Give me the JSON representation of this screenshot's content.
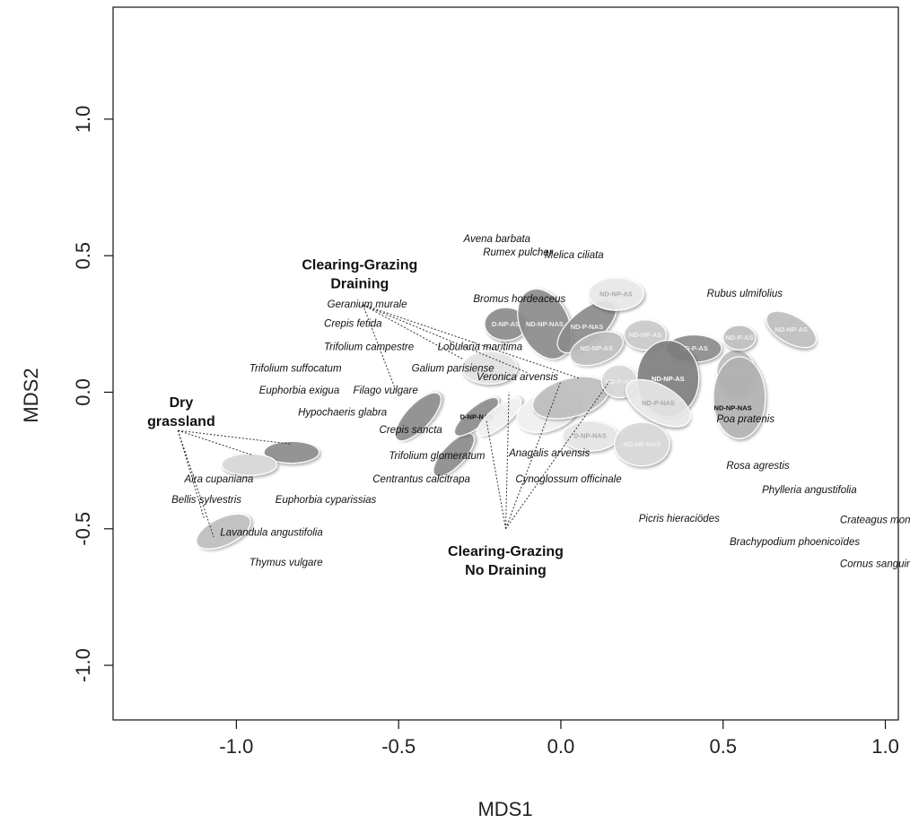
{
  "chart_data": {
    "type": "scatter",
    "xlabel": "MDS1",
    "ylabel": "MDS2",
    "xlim": [
      -1.38,
      1.04
    ],
    "ylim": [
      -1.2,
      1.41
    ],
    "xticks": [
      -1.0,
      -0.5,
      0.0,
      0.5,
      1.0
    ],
    "yticks": [
      -1.0,
      -0.5,
      0.0,
      0.5,
      1.0
    ],
    "xtick_labels": [
      "-1.0",
      "-0.5",
      "0.0",
      "0.5",
      "1.0"
    ],
    "ytick_labels": [
      "-1.0",
      "-0.5",
      "0.0",
      "0.5",
      "1.0"
    ],
    "grid": false,
    "species": [
      {
        "label": "Avena barbata",
        "x": -0.3,
        "y": 0.55
      },
      {
        "label": "Melica ciliata",
        "x": -0.05,
        "y": 0.49
      },
      {
        "label": "Rumex pulcher",
        "x": -0.24,
        "y": 0.5
      },
      {
        "label": "Bromus hordeaceus",
        "x": -0.27,
        "y": 0.33
      },
      {
        "label": "Rubus ulmifolius",
        "x": 0.45,
        "y": 0.35
      },
      {
        "label": "Geranium murale",
        "x": -0.72,
        "y": 0.31
      },
      {
        "label": "Crepis fetida",
        "x": -0.73,
        "y": 0.24
      },
      {
        "label": "Trifolium campestre",
        "x": -0.73,
        "y": 0.155
      },
      {
        "label": "Lobularia maritima",
        "x": -0.38,
        "y": 0.155
      },
      {
        "label": "Trifolium suffocatum",
        "x": -0.96,
        "y": 0.075
      },
      {
        "label": "Galium parisiense",
        "x": -0.46,
        "y": 0.075
      },
      {
        "label": "Veronica arvensis",
        "x": -0.26,
        "y": 0.045
      },
      {
        "label": "Euphorbia exigua",
        "x": -0.93,
        "y": -0.005
      },
      {
        "label": "Filago vulgare",
        "x": -0.64,
        "y": -0.005
      },
      {
        "label": "Hypochaeris glabra",
        "x": -0.81,
        "y": -0.085
      },
      {
        "label": "Crepis sancta",
        "x": -0.56,
        "y": -0.15
      },
      {
        "label": "Trifolium glomeratum",
        "x": -0.53,
        "y": -0.245
      },
      {
        "label": "Anagalis arvensis",
        "x": -0.16,
        "y": -0.235
      },
      {
        "label": "Aira cupaniana",
        "x": -1.16,
        "y": -0.33
      },
      {
        "label": "Centrantus calcitrapa",
        "x": -0.58,
        "y": -0.33
      },
      {
        "label": "Cynoglossum officinale",
        "x": -0.14,
        "y": -0.33
      },
      {
        "label": "Bellis sylvestris",
        "x": -1.2,
        "y": -0.405
      },
      {
        "label": "Euphorbia cyparissias",
        "x": -0.88,
        "y": -0.405
      },
      {
        "label": "Lavandula angustifolia",
        "x": -1.05,
        "y": -0.525
      },
      {
        "label": "Thymus vulgare",
        "x": -0.96,
        "y": -0.635
      },
      {
        "label": "Picris hieraciödes",
        "x": 0.24,
        "y": -0.475
      },
      {
        "label": "Poa pratenis",
        "x": 0.48,
        "y": -0.11
      },
      {
        "label": "Rosa agrestis",
        "x": 0.51,
        "y": -0.28
      },
      {
        "label": "Phylleria angustifolia",
        "x": 0.62,
        "y": -0.37
      },
      {
        "label": "Crateagus monogyna",
        "x": 0.86,
        "y": -0.48
      },
      {
        "label": "Brachypodium phoenicoïdes",
        "x": 0.52,
        "y": -0.56
      },
      {
        "label": "Cornus sanguinea",
        "x": 0.86,
        "y": -0.64
      }
    ],
    "groups": [
      {
        "label_lines": [
          "Clearing-Grazing",
          "Draining"
        ],
        "x": -0.62,
        "y": 0.45,
        "anchor": [
          -0.61,
          0.32
        ],
        "spokes": [
          [
            -0.51,
            0.01
          ],
          [
            -0.3,
            0.12
          ],
          [
            -0.1,
            0.07
          ],
          [
            0.06,
            0.05
          ]
        ]
      },
      {
        "label_lines": [
          "Dry",
          "grassland"
        ],
        "x": -1.17,
        "y": -0.055,
        "anchor": [
          -1.18,
          -0.14
        ],
        "spokes": [
          [
            -0.83,
            -0.19
          ],
          [
            -0.95,
            -0.23
          ],
          [
            -1.1,
            -0.46
          ],
          [
            -1.07,
            -0.53
          ]
        ]
      },
      {
        "label_lines": [
          "Clearing-Grazing",
          "No Draining"
        ],
        "x": -0.17,
        "y": -0.6,
        "anchor": [
          -0.17,
          -0.5
        ],
        "spokes": [
          [
            -0.23,
            -0.1
          ],
          [
            0.0,
            0.04
          ],
          [
            0.15,
            0.04
          ],
          [
            -0.16,
            0.0
          ]
        ]
      }
    ],
    "ellipses": [
      {
        "label": "",
        "x": -0.83,
        "y": -0.22,
        "rx": 0.085,
        "ry": 0.04,
        "angle": 0,
        "fill": "#8c8c8c"
      },
      {
        "label": "",
        "x": -0.96,
        "y": -0.265,
        "rx": 0.085,
        "ry": 0.04,
        "angle": 0,
        "fill": "#d9d9d9"
      },
      {
        "label": "",
        "x": -1.04,
        "y": -0.51,
        "rx": 0.09,
        "ry": 0.05,
        "angle": -25,
        "fill": "#bfbfbf"
      },
      {
        "label": "",
        "x": -0.44,
        "y": -0.09,
        "rx": 0.095,
        "ry": 0.045,
        "angle": -47,
        "fill": "#8c8c8c"
      },
      {
        "label": "",
        "x": -0.33,
        "y": -0.23,
        "rx": 0.085,
        "ry": 0.04,
        "angle": -47,
        "fill": "#8c8c8c"
      },
      {
        "label": "D-NP-NAS",
        "x": -0.26,
        "y": -0.09,
        "rx": 0.085,
        "ry": 0.035,
        "angle": -40,
        "fill": "#8c8c8c",
        "text": "#111111"
      },
      {
        "label": "",
        "x": -0.19,
        "y": -0.09,
        "rx": 0.085,
        "ry": 0.035,
        "angle": -40,
        "fill": "#f2f2f2"
      },
      {
        "label": "D-NP-AS",
        "x": -0.17,
        "y": 0.25,
        "rx": 0.065,
        "ry": 0.06,
        "angle": 0,
        "fill": "#8c8c8c",
        "text": "#eeeeee"
      },
      {
        "label": "",
        "x": -0.22,
        "y": 0.09,
        "rx": 0.085,
        "ry": 0.06,
        "angle": 0,
        "fill": "#e5e5e5"
      },
      {
        "label": "D-NP-AS",
        "x": -0.04,
        "y": -0.07,
        "rx": 0.1,
        "ry": 0.07,
        "angle": -20,
        "fill": "#f2f2f2",
        "text": "#bbbbbb"
      },
      {
        "label": "ND-NP-NAS",
        "x": -0.05,
        "y": 0.25,
        "rx": 0.075,
        "ry": 0.135,
        "angle": -25,
        "fill": "#8c8c8c",
        "text": "#eeeeee"
      },
      {
        "label": "ND-P-NAS",
        "x": 0.08,
        "y": 0.24,
        "rx": 0.11,
        "ry": 0.06,
        "angle": -40,
        "fill": "#8c8c8c",
        "text": "#eeeeee"
      },
      {
        "label": "ND-NP-AS",
        "x": 0.17,
        "y": 0.36,
        "rx": 0.085,
        "ry": 0.06,
        "angle": 0,
        "fill": "#ececec",
        "text": "#aaaaaa"
      },
      {
        "label": "ND-NP-AS",
        "x": 0.11,
        "y": 0.16,
        "rx": 0.085,
        "ry": 0.055,
        "angle": -20,
        "fill": "#bfbfbf",
        "text": "#eeeeee"
      },
      {
        "label": "ND-NP-AS",
        "x": 0.26,
        "y": 0.21,
        "rx": 0.065,
        "ry": 0.055,
        "angle": 0,
        "fill": "#cccccc",
        "text": "#eeeeee"
      },
      {
        "label": "ND-P-AS",
        "x": 0.41,
        "y": 0.16,
        "rx": 0.085,
        "ry": 0.05,
        "angle": 0,
        "fill": "#8c8c8c",
        "text": "#eeeeee"
      },
      {
        "label": "",
        "x": 0.03,
        "y": -0.02,
        "rx": 0.12,
        "ry": 0.07,
        "angle": -15,
        "fill": "#bfbfbf"
      },
      {
        "label": "ND-P-AS",
        "x": 0.18,
        "y": 0.04,
        "rx": 0.055,
        "ry": 0.06,
        "angle": 0,
        "fill": "#d9d9d9",
        "text": "#eeeeee"
      },
      {
        "label": "ND-NP-AS",
        "x": 0.33,
        "y": 0.05,
        "rx": 0.095,
        "ry": 0.14,
        "angle": 0,
        "fill": "#7f7f7f",
        "text": "#ffffff"
      },
      {
        "label": "ND-P-NAS",
        "x": 0.3,
        "y": -0.04,
        "rx": 0.11,
        "ry": 0.065,
        "angle": 30,
        "fill": "#ececec",
        "text": "#aaaaaa"
      },
      {
        "label": "D-NP-NAS",
        "x": 0.09,
        "y": -0.16,
        "rx": 0.085,
        "ry": 0.055,
        "angle": 0,
        "fill": "#e8e8e8",
        "text": "#aaaaaa"
      },
      {
        "label": "ND-NP-NAS",
        "x": 0.25,
        "y": -0.19,
        "rx": 0.085,
        "ry": 0.08,
        "angle": 0,
        "fill": "#d9d9d9",
        "text": "#eeeeee"
      },
      {
        "label": "ND-P-NAS",
        "x": 0.54,
        "y": 0.07,
        "rx": 0.06,
        "ry": 0.085,
        "angle": 0,
        "fill": "#bfbfbf",
        "text": "#eeeeee"
      },
      {
        "label": "",
        "x": 0.55,
        "y": -0.02,
        "rx": 0.08,
        "ry": 0.15,
        "angle": 0,
        "fill": "#b3b3b3"
      },
      {
        "label": "ND-P-AS",
        "x": 0.55,
        "y": 0.2,
        "rx": 0.05,
        "ry": 0.045,
        "angle": 0,
        "fill": "#bfbfbf",
        "text": "#eeeeee"
      },
      {
        "label": "ND-NP-AS",
        "x": 0.71,
        "y": 0.23,
        "rx": 0.085,
        "ry": 0.05,
        "angle": 30,
        "fill": "#bfbfbf",
        "text": "#eeeeee"
      }
    ],
    "ellipse_text_labels": [
      {
        "label": "ND-NP-NAS",
        "x": 0.53,
        "y": -0.065
      }
    ]
  }
}
